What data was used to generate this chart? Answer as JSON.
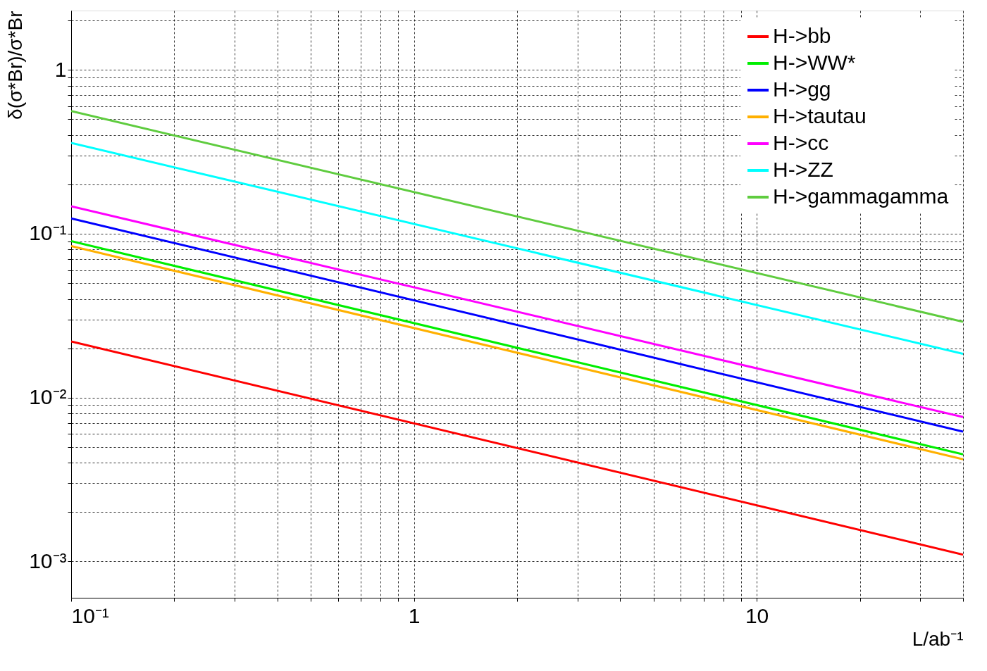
{
  "chart_data": {
    "type": "line",
    "xlabel": "L/ab⁻¹",
    "ylabel": "δ(σ*Br)/σ*Br",
    "log": "xy",
    "grid": true,
    "legend": "top right",
    "line_style": "solid",
    "marker": "none",
    "xlim": [
      0.1,
      40
    ],
    "ylim": [
      0.0006,
      2.3
    ],
    "xticks": [
      {
        "value": 0.1,
        "label": "10⁻¹"
      },
      {
        "value": 0.2,
        "label": null
      },
      {
        "value": 0.3,
        "label": null
      },
      {
        "value": 0.4,
        "label": null
      },
      {
        "value": 0.5,
        "label": null
      },
      {
        "value": 0.6,
        "label": null
      },
      {
        "value": 0.7,
        "label": null
      },
      {
        "value": 0.8,
        "label": null
      },
      {
        "value": 0.9,
        "label": null
      },
      1,
      {
        "value": 2,
        "label": null
      },
      {
        "value": 3,
        "label": null
      },
      {
        "value": 4,
        "label": null
      },
      {
        "value": 5,
        "label": null
      },
      {
        "value": 6,
        "label": null
      },
      {
        "value": 7,
        "label": null
      },
      {
        "value": 8,
        "label": null
      },
      {
        "value": 9,
        "label": null
      },
      10,
      {
        "value": 20,
        "label": null
      },
      {
        "value": 30,
        "label": null
      },
      {
        "value": 40,
        "label": null
      }
    ],
    "yticks": [
      {
        "value": 0.001,
        "label": "10⁻³"
      },
      {
        "value": 0.002,
        "label": null
      },
      {
        "value": 0.003,
        "label": null
      },
      {
        "value": 0.004,
        "label": null
      },
      {
        "value": 0.005,
        "label": null
      },
      {
        "value": 0.006,
        "label": null
      },
      {
        "value": 0.007,
        "label": null
      },
      {
        "value": 0.008,
        "label": null
      },
      {
        "value": 0.009,
        "label": null
      },
      {
        "value": 0.01,
        "label": "10⁻²"
      },
      {
        "value": 0.02,
        "label": null
      },
      {
        "value": 0.03,
        "label": null
      },
      {
        "value": 0.04,
        "label": null
      },
      {
        "value": 0.05,
        "label": null
      },
      {
        "value": 0.06,
        "label": null
      },
      {
        "value": 0.07,
        "label": null
      },
      {
        "value": 0.08,
        "label": null
      },
      {
        "value": 0.09,
        "label": null
      },
      {
        "value": 0.1,
        "label": "10⁻¹"
      },
      {
        "value": 0.2,
        "label": null
      },
      {
        "value": 0.3,
        "label": null
      },
      {
        "value": 0.4,
        "label": null
      },
      {
        "value": 0.5,
        "label": null
      },
      {
        "value": 0.6,
        "label": null
      },
      {
        "value": 0.7,
        "label": null
      },
      {
        "value": 0.8,
        "label": null
      },
      {
        "value": 0.9,
        "label": null
      },
      1,
      {
        "value": 2,
        "label": null
      }
    ],
    "x": [
      0.1,
      40
    ],
    "series": [
      {
        "name": "H->bb",
        "color": "#ff0000",
        "values": [
          0.022,
          0.0011
        ]
      },
      {
        "name": "H->WW*",
        "color": "#00ee00",
        "values": [
          0.09,
          0.0045
        ]
      },
      {
        "name": "H->gg",
        "color": "#0000ff",
        "values": [
          0.124,
          0.0062
        ]
      },
      {
        "name": "H->tautau",
        "color": "#ffb000",
        "values": [
          0.084,
          0.0042
        ]
      },
      {
        "name": "H->cc",
        "color": "#ff00ff",
        "values": [
          0.147,
          0.0076
        ]
      },
      {
        "name": "H->ZZ",
        "color": "#00ffff",
        "values": [
          0.358,
          0.0185
        ]
      },
      {
        "name": "H->gammagamma",
        "color": "#5fcc3f",
        "values": [
          0.56,
          0.029
        ]
      }
    ]
  }
}
